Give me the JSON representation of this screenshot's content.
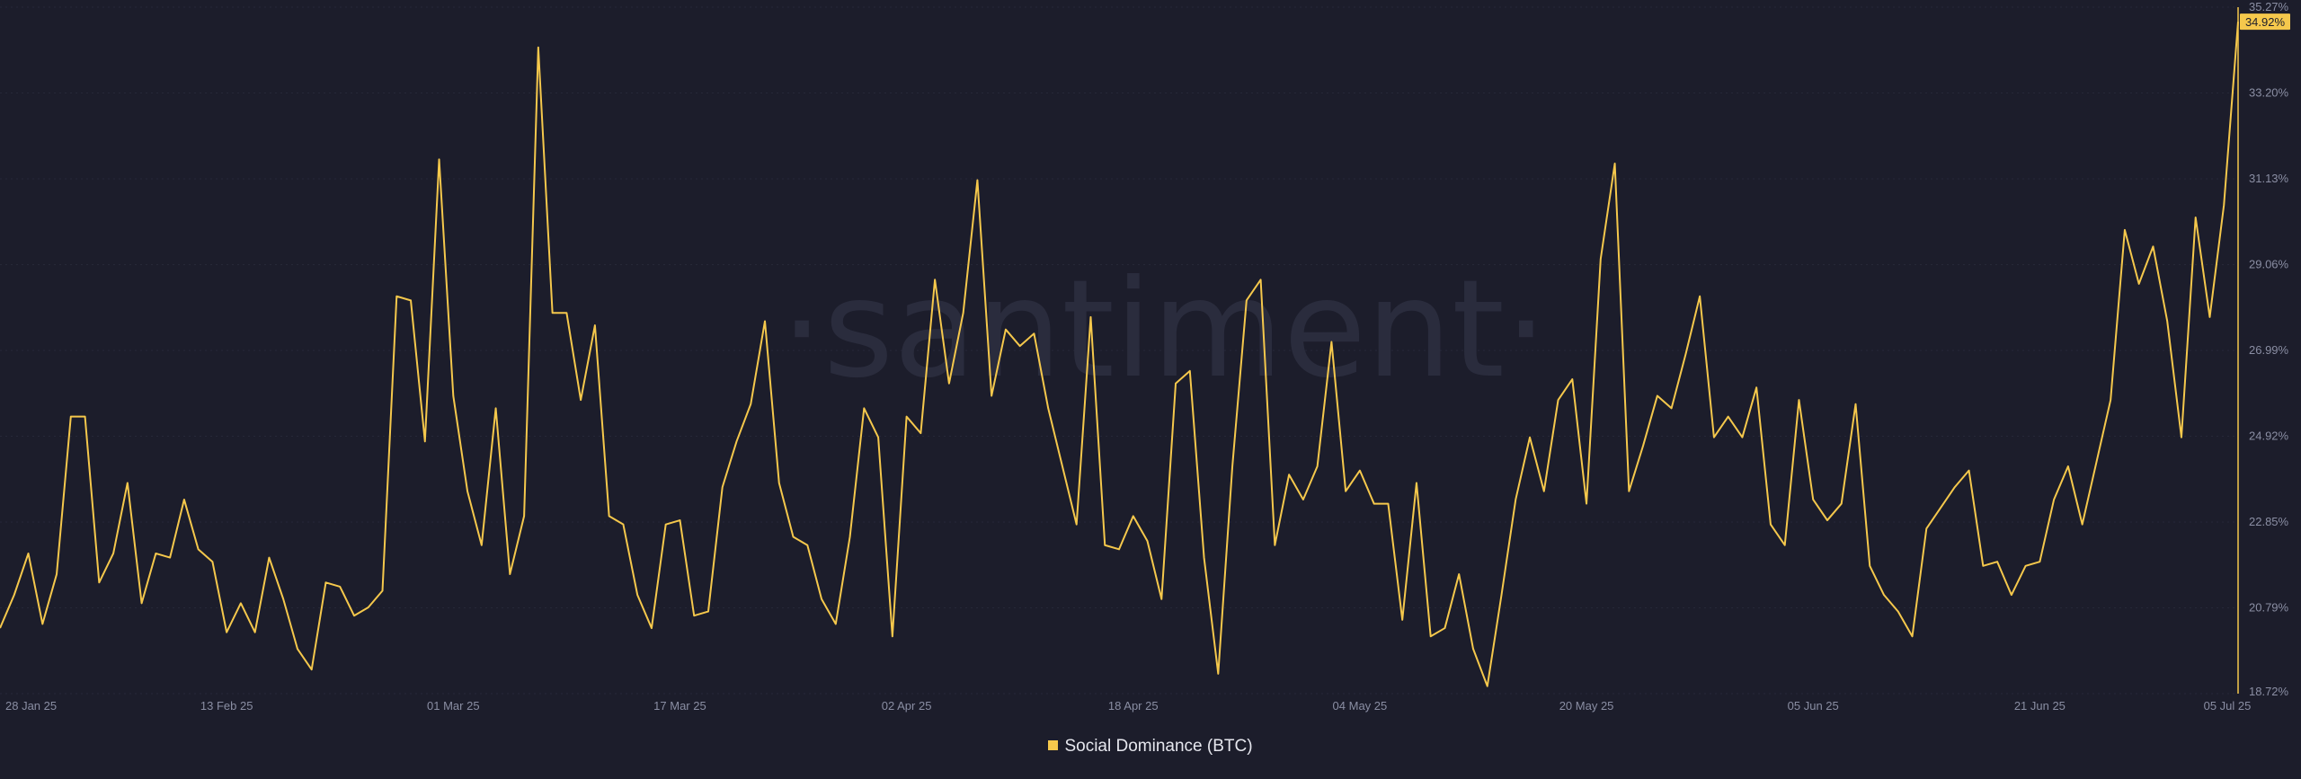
{
  "watermark": "·santiment·",
  "colors": {
    "background": "#1c1d2b",
    "line": "#f5c84c",
    "grid": "#262838",
    "tick": "#8a8ea3",
    "axis": "#f5c84c"
  },
  "chart_data": {
    "type": "line",
    "xlabel": "",
    "ylabel": "",
    "x_tick_labels": [
      "28 Jan 25",
      "13 Feb 25",
      "01 Mar 25",
      "17 Mar 25",
      "02 Apr 25",
      "18 Apr 25",
      "04 May 25",
      "20 May 25",
      "05 Jun 25",
      "21 Jun 25",
      "05 Jul 25"
    ],
    "y_tick_labels": [
      "35.27%",
      "33.20%",
      "31.13%",
      "29.06%",
      "26.99%",
      "24.92%",
      "22.85%",
      "20.79%",
      "18.72%"
    ],
    "ylim": [
      18.72,
      35.27
    ],
    "grid": true,
    "legend_position": "bottom-center",
    "last_value_label": "34.92%",
    "series": [
      {
        "name": "Social Dominance (BTC)",
        "color": "#f5c84c",
        "x_start": "2025-01-28",
        "x_step_days": 1,
        "values": [
          20.3,
          21.1,
          22.1,
          20.4,
          21.6,
          25.4,
          25.4,
          21.4,
          22.1,
          23.8,
          20.9,
          22.1,
          22.0,
          23.4,
          22.2,
          21.9,
          20.2,
          20.9,
          20.2,
          22.0,
          21.0,
          19.8,
          19.3,
          21.4,
          21.3,
          20.6,
          20.8,
          21.2,
          28.3,
          28.2,
          24.8,
          31.6,
          25.9,
          23.6,
          22.3,
          25.6,
          21.6,
          23.0,
          34.3,
          27.9,
          27.9,
          25.8,
          27.6,
          23.0,
          22.8,
          21.1,
          20.3,
          22.8,
          22.9,
          20.6,
          20.7,
          23.7,
          24.8,
          25.7,
          27.7,
          23.8,
          22.5,
          22.3,
          21.0,
          20.4,
          22.5,
          25.6,
          24.9,
          20.1,
          25.4,
          25.0,
          28.7,
          26.2,
          27.9,
          31.1,
          25.9,
          27.5,
          27.1,
          27.4,
          25.6,
          24.2,
          22.8,
          27.8,
          22.3,
          22.2,
          23.0,
          22.4,
          21.0,
          26.2,
          26.5,
          22.0,
          19.2,
          24.2,
          28.2,
          28.7,
          22.3,
          24.0,
          23.4,
          24.2,
          27.2,
          23.6,
          24.1,
          23.3,
          23.3,
          20.5,
          23.8,
          20.1,
          20.3,
          21.6,
          19.8,
          18.9,
          21.1,
          23.4,
          24.9,
          23.6,
          25.8,
          26.3,
          23.3,
          29.2,
          31.5,
          23.6,
          24.7,
          25.9,
          25.6,
          26.9,
          28.3,
          24.9,
          25.4,
          24.9,
          26.1,
          22.8,
          22.3,
          25.8,
          23.4,
          22.9,
          23.3,
          25.7,
          21.8,
          21.1,
          20.7,
          20.1,
          22.7,
          23.2,
          23.7,
          24.1,
          21.8,
          21.9,
          21.1,
          21.8,
          21.9,
          23.4,
          24.2,
          22.8,
          24.3,
          25.8,
          29.9,
          28.6,
          29.5,
          27.7,
          24.9,
          30.2,
          27.8,
          30.5,
          34.92
        ]
      }
    ]
  }
}
